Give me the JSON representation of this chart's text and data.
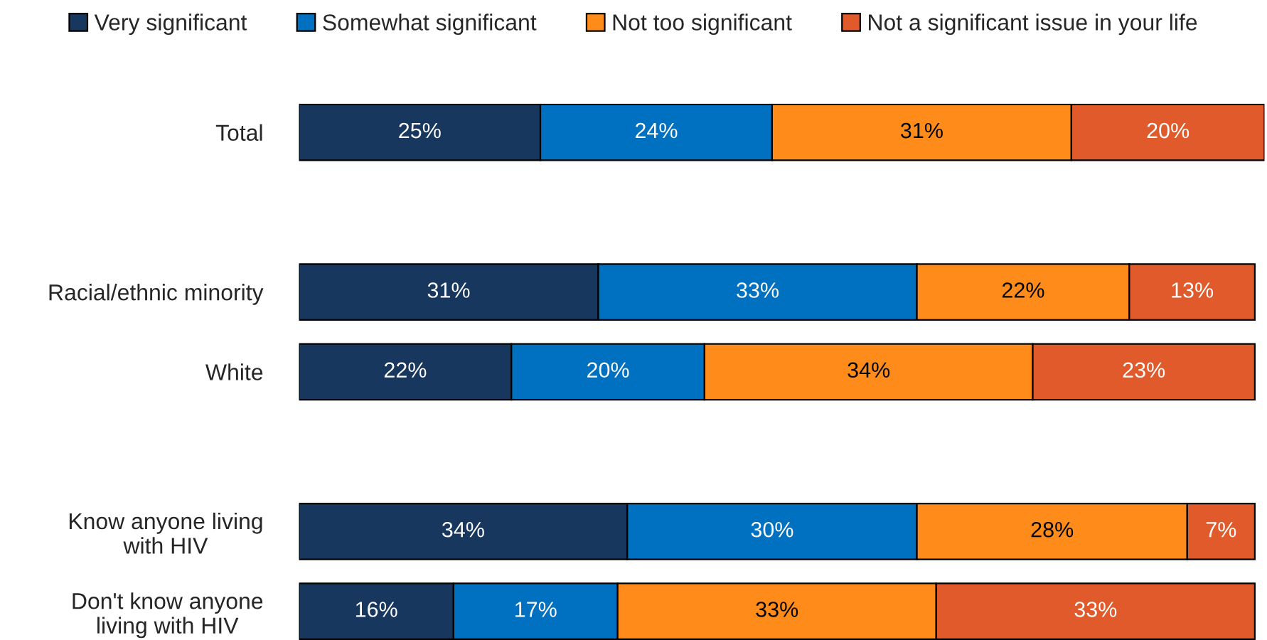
{
  "chart_data": {
    "type": "bar",
    "orientation": "horizontal",
    "stacked": true,
    "legend": "top",
    "grid": false,
    "tick_labels": "y",
    "categories": [
      "Total",
      null,
      "Racial/ethnic minority",
      "White",
      null,
      "Know anyone living\nwith HIV",
      "Don't know anyone\nliving with HIV"
    ],
    "series": [
      {
        "name": "Very significant",
        "color": "#17375e",
        "values": [
          25,
          null,
          31,
          22,
          null,
          34,
          16
        ],
        "value_labels": [
          "25%",
          null,
          "31%",
          "22%",
          null,
          "34%",
          "16%"
        ]
      },
      {
        "name": "Somewhat significant",
        "color": "#0070c0",
        "values": [
          24,
          null,
          33,
          20,
          null,
          30,
          17
        ],
        "value_labels": [
          "24%",
          null,
          "33%",
          "20%",
          null,
          "30%",
          "17%"
        ]
      },
      {
        "name": "Not too significant",
        "color": "#ff8c1a",
        "values": [
          31,
          null,
          22,
          34,
          null,
          28,
          33
        ],
        "value_labels": [
          "31%",
          null,
          "22%",
          "34%",
          null,
          "28%",
          "33%"
        ]
      },
      {
        "name": "Not a significant issue in your life",
        "color": "#e05a2b",
        "values": [
          20,
          null,
          13,
          23,
          null,
          7,
          33
        ],
        "value_labels": [
          "20%",
          null,
          "13%",
          "23%",
          null,
          "7%",
          "33%"
        ]
      }
    ]
  }
}
